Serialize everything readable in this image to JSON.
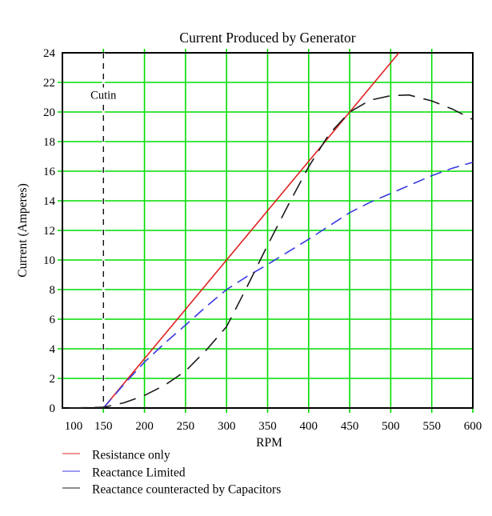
{
  "chart_data": {
    "type": "line",
    "title": "Current Produced by Generator",
    "xlabel": "RPM",
    "ylabel": "Current (Amperes)",
    "xlim": [
      100,
      600
    ],
    "ylim": [
      0,
      24
    ],
    "x_ticks": [
      100,
      150,
      200,
      250,
      300,
      350,
      400,
      450,
      500,
      550,
      600
    ],
    "y_ticks": [
      0,
      2,
      4,
      6,
      8,
      10,
      12,
      14,
      16,
      18,
      20,
      22,
      24
    ],
    "grid": true,
    "legend_position": "below-plot-left",
    "colors": {
      "grid": "#00DC00",
      "frame": "#000000",
      "text": "#000000",
      "background": "#FFFFFF"
    },
    "annotations": [
      {
        "type": "vline-dashed",
        "x": 150,
        "label": "Cutin",
        "label_y": 21,
        "color": "#111111"
      }
    ],
    "series": [
      {
        "name": "Resistance only",
        "color": "#E02222",
        "dash": "solid",
        "points": [
          [
            150,
            0
          ],
          [
            510,
            24
          ]
        ]
      },
      {
        "name": "Reactance Limited",
        "color": "#3A3ADF",
        "dash": "dashed",
        "points": [
          [
            150,
            0
          ],
          [
            175,
            1.6
          ],
          [
            200,
            3.1
          ],
          [
            225,
            4.4
          ],
          [
            250,
            5.6
          ],
          [
            275,
            6.85
          ],
          [
            300,
            8.0
          ],
          [
            325,
            8.9
          ],
          [
            350,
            9.7
          ],
          [
            375,
            10.55
          ],
          [
            400,
            11.4
          ],
          [
            425,
            12.3
          ],
          [
            450,
            13.2
          ],
          [
            475,
            13.9
          ],
          [
            500,
            14.5
          ],
          [
            525,
            15.1
          ],
          [
            550,
            15.7
          ],
          [
            575,
            16.2
          ],
          [
            600,
            16.6
          ]
        ]
      },
      {
        "name": "Reactance counteracted by Capacitors",
        "color": "#1C1C1C",
        "dash": "long-dash",
        "points": [
          [
            108,
            0
          ],
          [
            150,
            0.05
          ],
          [
            175,
            0.35
          ],
          [
            200,
            0.85
          ],
          [
            225,
            1.55
          ],
          [
            250,
            2.5
          ],
          [
            275,
            3.9
          ],
          [
            300,
            5.5
          ],
          [
            325,
            8.2
          ],
          [
            350,
            11.0
          ],
          [
            375,
            13.7
          ],
          [
            400,
            16.3
          ],
          [
            425,
            18.5
          ],
          [
            450,
            20.0
          ],
          [
            475,
            20.8
          ],
          [
            500,
            21.1
          ],
          [
            522,
            21.15
          ],
          [
            550,
            20.75
          ],
          [
            575,
            20.2
          ],
          [
            600,
            19.5
          ]
        ]
      }
    ]
  }
}
